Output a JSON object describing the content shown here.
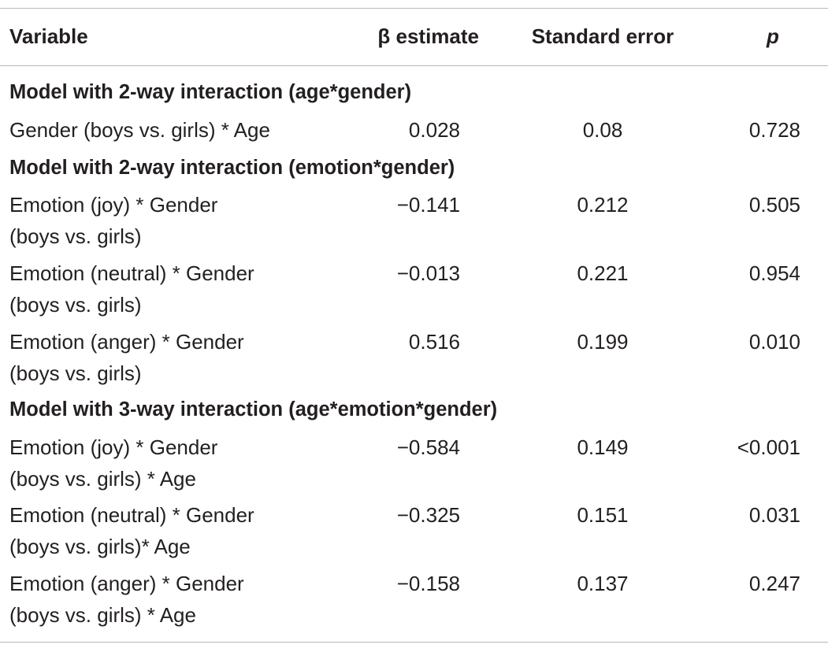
{
  "table": {
    "columns": [
      "Variable",
      "β estimate",
      "Standard error",
      "p"
    ],
    "sections": [
      {
        "title": "Model with 2-way interaction (age*gender)",
        "rows": [
          {
            "variable": "Gender (boys vs. girls) * Age",
            "beta": "0.028",
            "se": "0.08",
            "p": "0.728"
          }
        ]
      },
      {
        "title": "Model with 2-way interaction (emotion*gender)",
        "rows": [
          {
            "variable": "Emotion (joy) * Gender\n(boys vs. girls)",
            "beta": "−0.141",
            "se": "0.212",
            "p": "0.505"
          },
          {
            "variable": "Emotion (neutral) * Gender\n(boys vs. girls)",
            "beta": "−0.013",
            "se": "0.221",
            "p": "0.954"
          },
          {
            "variable": "Emotion (anger) * Gender\n(boys vs. girls)",
            "beta": "0.516",
            "se": "0.199",
            "p": "0.010"
          }
        ]
      },
      {
        "title": "Model with 3-way interaction (age*emotion*gender)",
        "rows": [
          {
            "variable": "Emotion (joy) * Gender\n(boys vs. girls) * Age",
            "beta": "−0.584",
            "se": "0.149",
            "p": "<0.001"
          },
          {
            "variable": "Emotion (neutral) * Gender\n(boys vs. girls)* Age",
            "beta": "−0.325",
            "se": "0.151",
            "p": "0.031"
          },
          {
            "variable": "Emotion (anger) * Gender\n(boys vs. girls) * Age",
            "beta": "−0.158",
            "se": "0.137",
            "p": "0.247"
          }
        ]
      }
    ]
  }
}
